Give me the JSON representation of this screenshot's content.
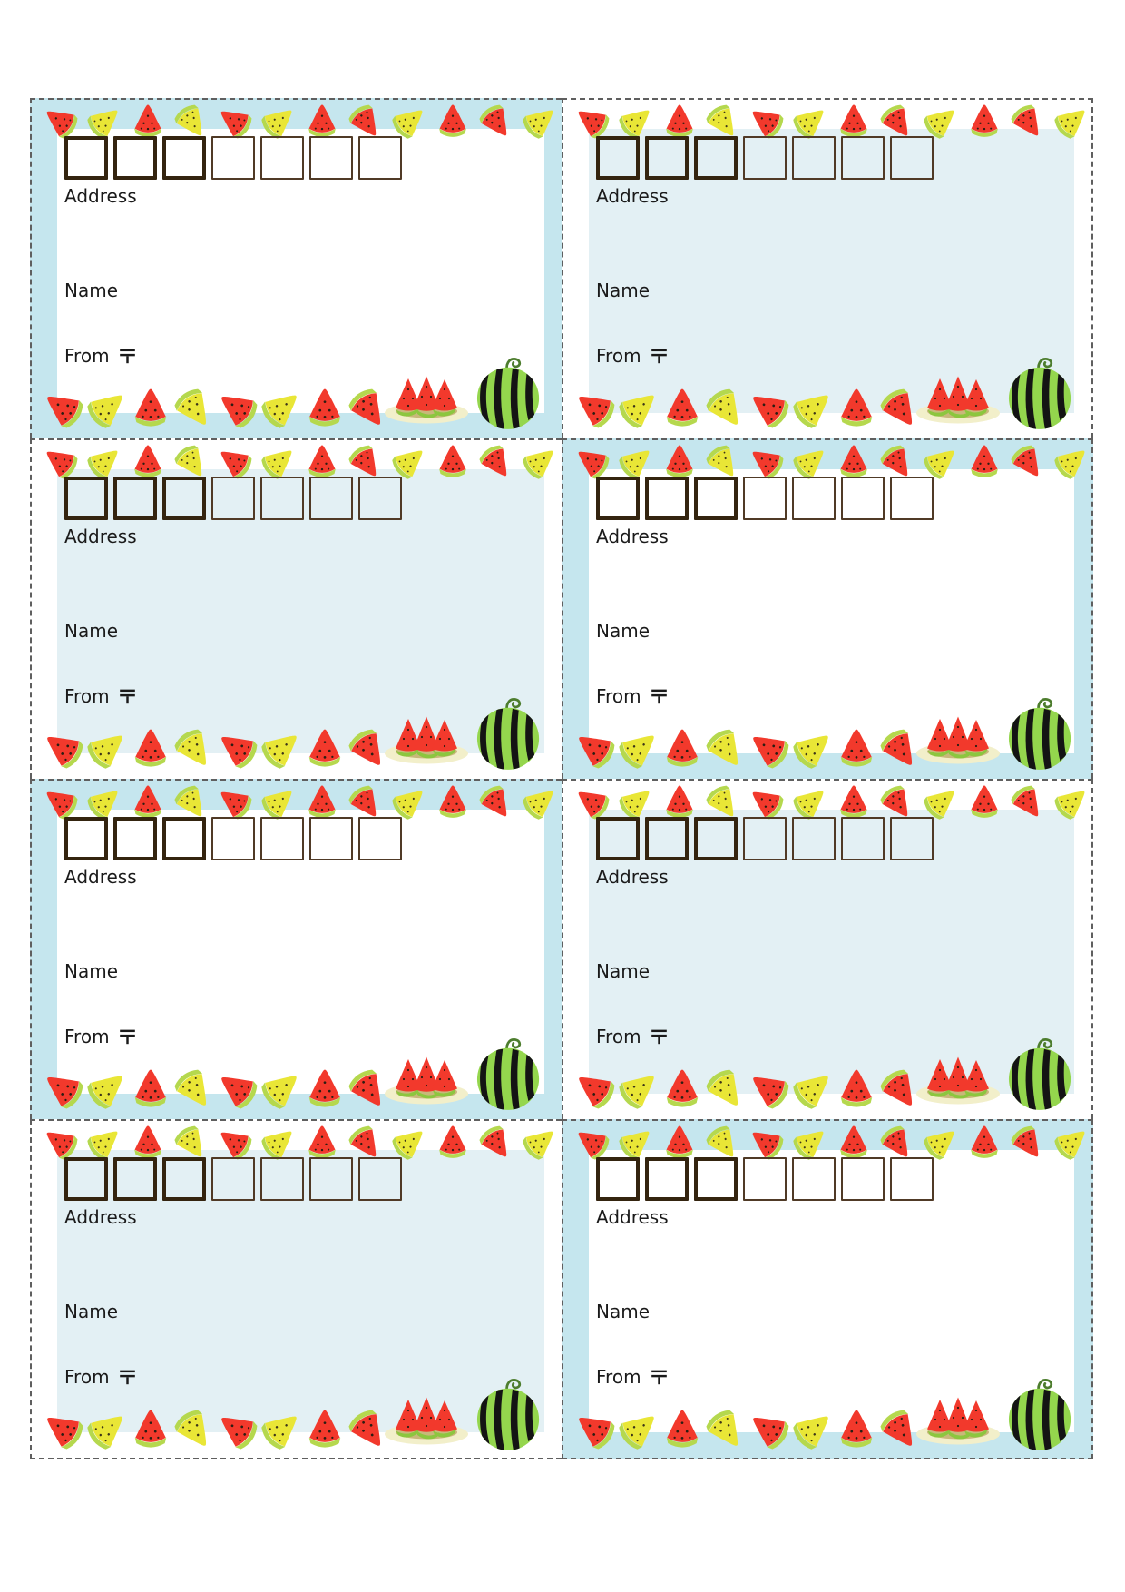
{
  "page": {
    "description": "printable-watermelon-address-label-sheet",
    "rows": 4,
    "columns": 2,
    "background": "#ffffff"
  },
  "labels": {
    "address": "Address",
    "name": "Name",
    "from": "From",
    "postal_mark": "〒"
  },
  "postal_code": {
    "box_count": 7,
    "bold_boxes": 3,
    "values": [
      "",
      "",
      "",
      "",
      "",
      "",
      ""
    ]
  },
  "cards": [
    {
      "id": 1,
      "theme": "blue-border"
    },
    {
      "id": 2,
      "theme": "white-border"
    },
    {
      "id": 3,
      "theme": "white-border"
    },
    {
      "id": 4,
      "theme": "blue-border"
    },
    {
      "id": 5,
      "theme": "blue-border"
    },
    {
      "id": 6,
      "theme": "white-border"
    },
    {
      "id": 7,
      "theme": "white-border"
    },
    {
      "id": 8,
      "theme": "blue-border"
    }
  ],
  "decor": {
    "top_fruit_pattern": [
      "red-slice-left",
      "yellow-slice-right",
      "red-slice-up",
      "yellow-slice-down",
      "red-slice-left",
      "yellow-slice-right",
      "red-slice-up",
      "red-slice-down",
      "yellow-slice-right",
      "red-slice-up",
      "red-slice-down",
      "yellow-slice-right"
    ],
    "bottom_fruit_pattern": [
      "red-slice-left",
      "yellow-slice-right",
      "red-slice-up",
      "yellow-slice-down",
      "red-slice-left",
      "yellow-slice-right",
      "red-slice-up",
      "red-slice-down"
    ],
    "corner_icons": [
      "watermelon-plate-icon",
      "whole-watermelon-icon"
    ]
  },
  "colors": {
    "band_blue": "#c5e6ee",
    "inner_pale_blue": "#e3f0f4",
    "card_white": "#ffffff",
    "watermelon_red": "#f2392c",
    "watermelon_yellow": "#e9e636",
    "rind_green": "#b5d84e",
    "plate_rind_green": "#8cc63f",
    "melon_skin_green": "#94d64d",
    "melon_stripe_black": "#141414",
    "stem_green": "#4d7d2e",
    "plate_cream": "#f2efca",
    "plate_tan": "#c8b87a",
    "box_border_bold_brown": "#34240f",
    "box_border_thin_brown": "#503a26",
    "text_black": "#1a1a1a",
    "cut_line_gray": "#5f5f5f"
  }
}
